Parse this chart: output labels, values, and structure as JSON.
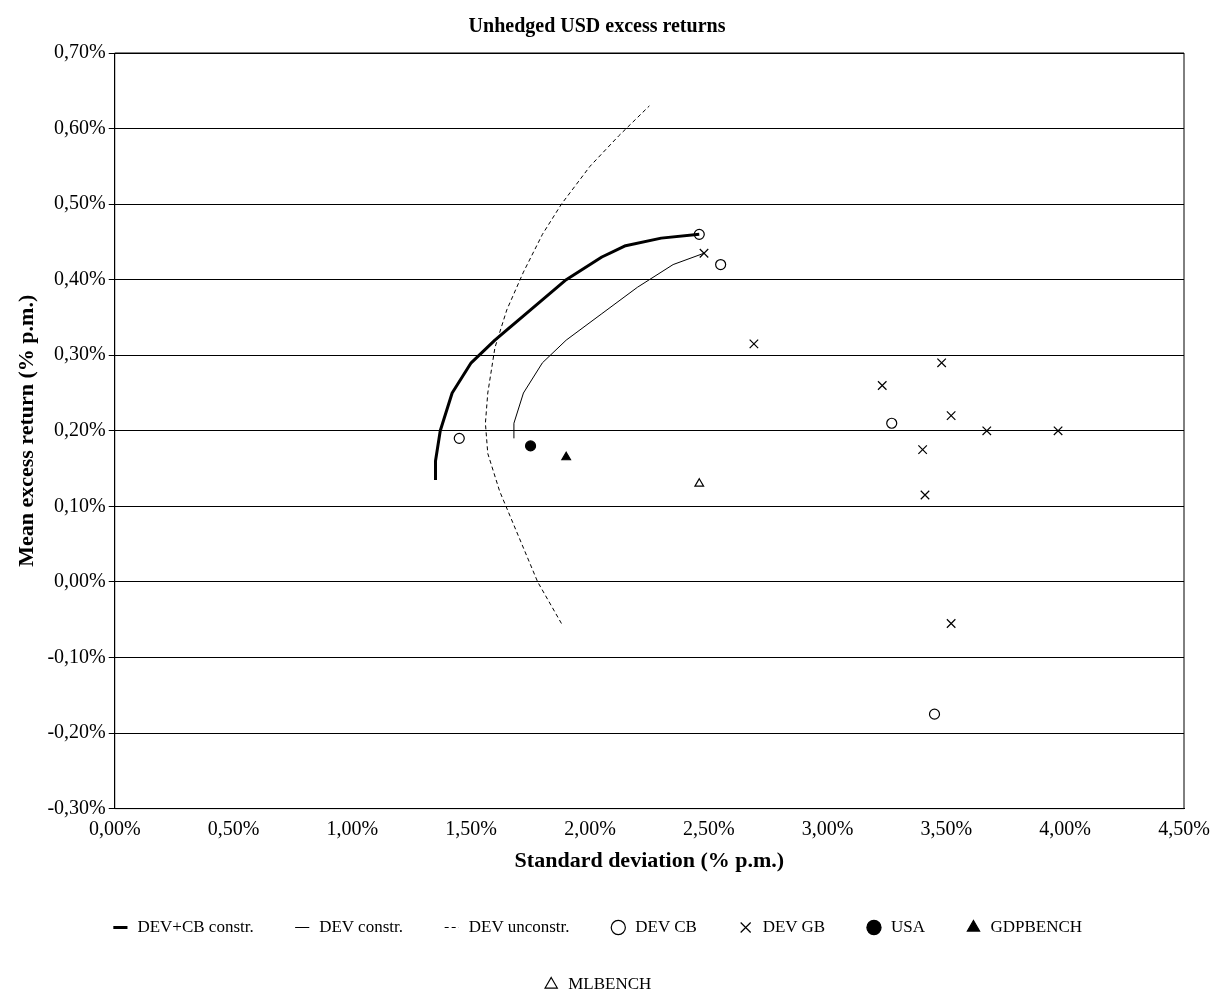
{
  "chart_data": {
    "type": "scatter",
    "title": "Unhedged USD excess returns",
    "xlabel": "Standard deviation (% p.m.)",
    "ylabel": "Mean excess return (% p.m.)",
    "xlim": [
      0,
      4.5
    ],
    "ylim": [
      -0.3,
      0.7
    ],
    "xticks": [
      {
        "value": 0,
        "label": "0,00%"
      },
      {
        "value": 0.5,
        "label": "0,50%"
      },
      {
        "value": 1,
        "label": "1,00%"
      },
      {
        "value": 1.5,
        "label": "1,50%"
      },
      {
        "value": 2,
        "label": "2,00%"
      },
      {
        "value": 2.5,
        "label": "2,50%"
      },
      {
        "value": 3,
        "label": "3,00%"
      },
      {
        "value": 3.5,
        "label": "3,50%"
      },
      {
        "value": 4,
        "label": "4,00%"
      },
      {
        "value": 4.5,
        "label": "4,50%"
      }
    ],
    "yticks": [
      {
        "value": -0.3,
        "label": "-0,30%"
      },
      {
        "value": -0.2,
        "label": "-0,20%"
      },
      {
        "value": -0.1,
        "label": "-0,10%"
      },
      {
        "value": 0,
        "label": "0,00%"
      },
      {
        "value": 0.1,
        "label": "0,10%"
      },
      {
        "value": 0.2,
        "label": "0,20%"
      },
      {
        "value": 0.3,
        "label": "0,30%"
      },
      {
        "value": 0.4,
        "label": "0,40%"
      },
      {
        "value": 0.5,
        "label": "0,50%"
      },
      {
        "value": 0.6,
        "label": "0,60%"
      },
      {
        "value": 0.7,
        "label": "0,70%"
      }
    ],
    "grid": "y",
    "legend": "bottom",
    "series": [
      {
        "name": "DEV+CB constr.",
        "type": "line",
        "line_style": "solid",
        "marker": "none",
        "color": "#000000",
        "x": [
          1.35,
          1.35,
          1.37,
          1.42,
          1.5,
          1.6,
          1.75,
          1.9,
          2.05,
          2.15,
          2.3,
          2.46
        ],
        "values": [
          0.135,
          0.16,
          0.2,
          0.25,
          0.29,
          0.32,
          0.36,
          0.4,
          0.43,
          0.445,
          0.455,
          0.46
        ]
      },
      {
        "name": "DEV constr.",
        "type": "line",
        "line_style": "solid",
        "marker": "none",
        "color": "#000000",
        "x": [
          1.68,
          1.68,
          1.72,
          1.8,
          1.9,
          2.05,
          2.2,
          2.35,
          2.48
        ],
        "values": [
          0.19,
          0.21,
          0.25,
          0.29,
          0.32,
          0.355,
          0.39,
          0.42,
          0.435
        ]
      },
      {
        "name": "DEV unconstr.",
        "type": "line",
        "line_style": "dashed",
        "marker": "none",
        "color": "#000000",
        "x": [
          1.88,
          1.78,
          1.7,
          1.62,
          1.57,
          1.56,
          1.57,
          1.6,
          1.65,
          1.72,
          1.8,
          1.88,
          2.0,
          2.12,
          2.25
        ],
        "values": [
          -0.055,
          0.0,
          0.06,
          0.12,
          0.17,
          0.21,
          0.25,
          0.31,
          0.36,
          0.41,
          0.46,
          0.5,
          0.55,
          0.59,
          0.63
        ]
      },
      {
        "name": "DEV CB",
        "type": "scatter",
        "marker": "circle",
        "color": "#000000",
        "x": [
          1.45,
          2.46,
          2.55,
          3.27,
          3.45
        ],
        "values": [
          0.19,
          0.46,
          0.42,
          0.21,
          -0.175
        ]
      },
      {
        "name": "DEV GB",
        "type": "scatter",
        "marker": "cross",
        "color": "#000000",
        "x": [
          2.48,
          2.69,
          3.23,
          3.48,
          3.52,
          3.67,
          3.97,
          3.4,
          3.41,
          3.52
        ],
        "values": [
          0.435,
          0.315,
          0.26,
          0.29,
          0.22,
          0.2,
          0.2,
          0.175,
          0.115,
          -0.055
        ]
      },
      {
        "name": "USA",
        "type": "scatter",
        "marker": "circle",
        "color": "#000000",
        "x": [
          1.75
        ],
        "values": [
          0.18
        ]
      },
      {
        "name": "GDPBENCH",
        "type": "scatter",
        "marker": "triangle",
        "color": "#000000",
        "x": [
          1.9
        ],
        "values": [
          0.165
        ]
      },
      {
        "name": "MLBENCH",
        "type": "scatter",
        "marker": "triangle",
        "color": "#000000",
        "x": [
          2.46
        ],
        "values": [
          0.13
        ]
      }
    ]
  }
}
